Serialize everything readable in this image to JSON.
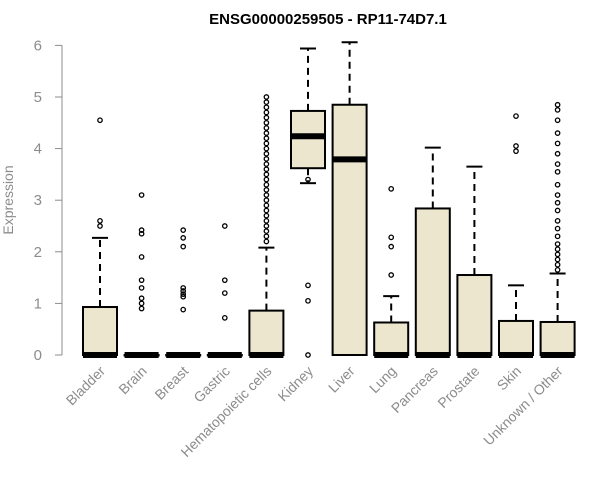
{
  "chart_data": {
    "type": "boxplot",
    "title": "ENSG00000259505 - RP11-74D7.1",
    "xlabel": "",
    "ylabel": "Expression",
    "ylim": [
      0,
      6
    ],
    "yticks": [
      0,
      1,
      2,
      3,
      4,
      5,
      6
    ],
    "colors": {
      "box_fill": "#ede6cf",
      "stroke": "#000000",
      "axis": "#8c8c8c"
    },
    "categories": [
      "Bladder",
      "Brain",
      "Breast",
      "Gastric",
      "Hematopoietic cells",
      "Kidney",
      "Liver",
      "Lung",
      "Pancreas",
      "Prostate",
      "Skin",
      "Unknown / Other"
    ],
    "boxes": [
      {
        "name": "Bladder",
        "q1": 0,
        "median": 0,
        "q3": 0.93,
        "whisker_low": 0,
        "whisker_high": 2.27,
        "outliers": [
          2.5,
          2.6,
          4.55
        ]
      },
      {
        "name": "Brain",
        "q1": 0,
        "median": 0,
        "q3": 0,
        "whisker_low": 0,
        "whisker_high": 0,
        "outliers": [
          0.9,
          1.0,
          1.1,
          1.3,
          1.45,
          1.9,
          2.35,
          2.42,
          3.1
        ]
      },
      {
        "name": "Breast",
        "q1": 0,
        "median": 0,
        "q3": 0,
        "whisker_low": 0,
        "whisker_high": 0,
        "outliers": [
          0.88,
          1.13,
          1.18,
          1.24,
          1.3,
          2.1,
          2.27,
          2.42
        ]
      },
      {
        "name": "Gastric",
        "q1": 0,
        "median": 0,
        "q3": 0,
        "whisker_low": 0,
        "whisker_high": 0,
        "outliers": [
          0.72,
          1.2,
          1.45,
          2.5
        ]
      },
      {
        "name": "Hematopoietic cells",
        "q1": 0,
        "median": 0,
        "q3": 0.86,
        "whisker_low": 0,
        "whisker_high": 2.08,
        "outliers": [
          2.2,
          2.3,
          2.4,
          2.5,
          2.6,
          2.7,
          2.8,
          2.9,
          3.0,
          3.1,
          3.2,
          3.3,
          3.4,
          3.5,
          3.6,
          3.7,
          3.8,
          3.9,
          4.0,
          4.1,
          4.2,
          4.3,
          4.4,
          4.5,
          4.6,
          4.7,
          4.8,
          4.9,
          5.0
        ]
      },
      {
        "name": "Kidney",
        "q1": 3.62,
        "median": 4.24,
        "q3": 4.73,
        "whisker_low": 3.33,
        "whisker_high": 5.94,
        "outliers": [
          0,
          1.05,
          1.35,
          3.4
        ]
      },
      {
        "name": "Liver",
        "q1": 0,
        "median": 3.79,
        "q3": 4.85,
        "whisker_low": 0,
        "whisker_high": 6.06,
        "outliers": []
      },
      {
        "name": "Lung",
        "q1": 0,
        "median": 0,
        "q3": 0.63,
        "whisker_low": 0,
        "whisker_high": 1.14,
        "outliers": [
          1.55,
          2.1,
          2.28,
          3.22
        ]
      },
      {
        "name": "Pancreas",
        "q1": 0,
        "median": 0,
        "q3": 2.84,
        "whisker_low": 0,
        "whisker_high": 4.02,
        "outliers": []
      },
      {
        "name": "Prostate",
        "q1": 0,
        "median": 0,
        "q3": 1.55,
        "whisker_low": 0,
        "whisker_high": 3.65,
        "outliers": []
      },
      {
        "name": "Skin",
        "q1": 0,
        "median": 0,
        "q3": 0.66,
        "whisker_low": 0,
        "whisker_high": 1.35,
        "outliers": [
          3.95,
          4.05,
          4.63
        ]
      },
      {
        "name": "Unknown / Other",
        "q1": 0,
        "median": 0,
        "q3": 0.64,
        "whisker_low": 0,
        "whisker_high": 1.58,
        "outliers": [
          1.65,
          1.75,
          1.85,
          1.95,
          2.05,
          2.15,
          2.3,
          2.45,
          2.6,
          2.8,
          2.95,
          3.1,
          3.3,
          3.55,
          3.7,
          3.9,
          4.1,
          4.3,
          4.55,
          4.75,
          4.85
        ]
      }
    ]
  }
}
